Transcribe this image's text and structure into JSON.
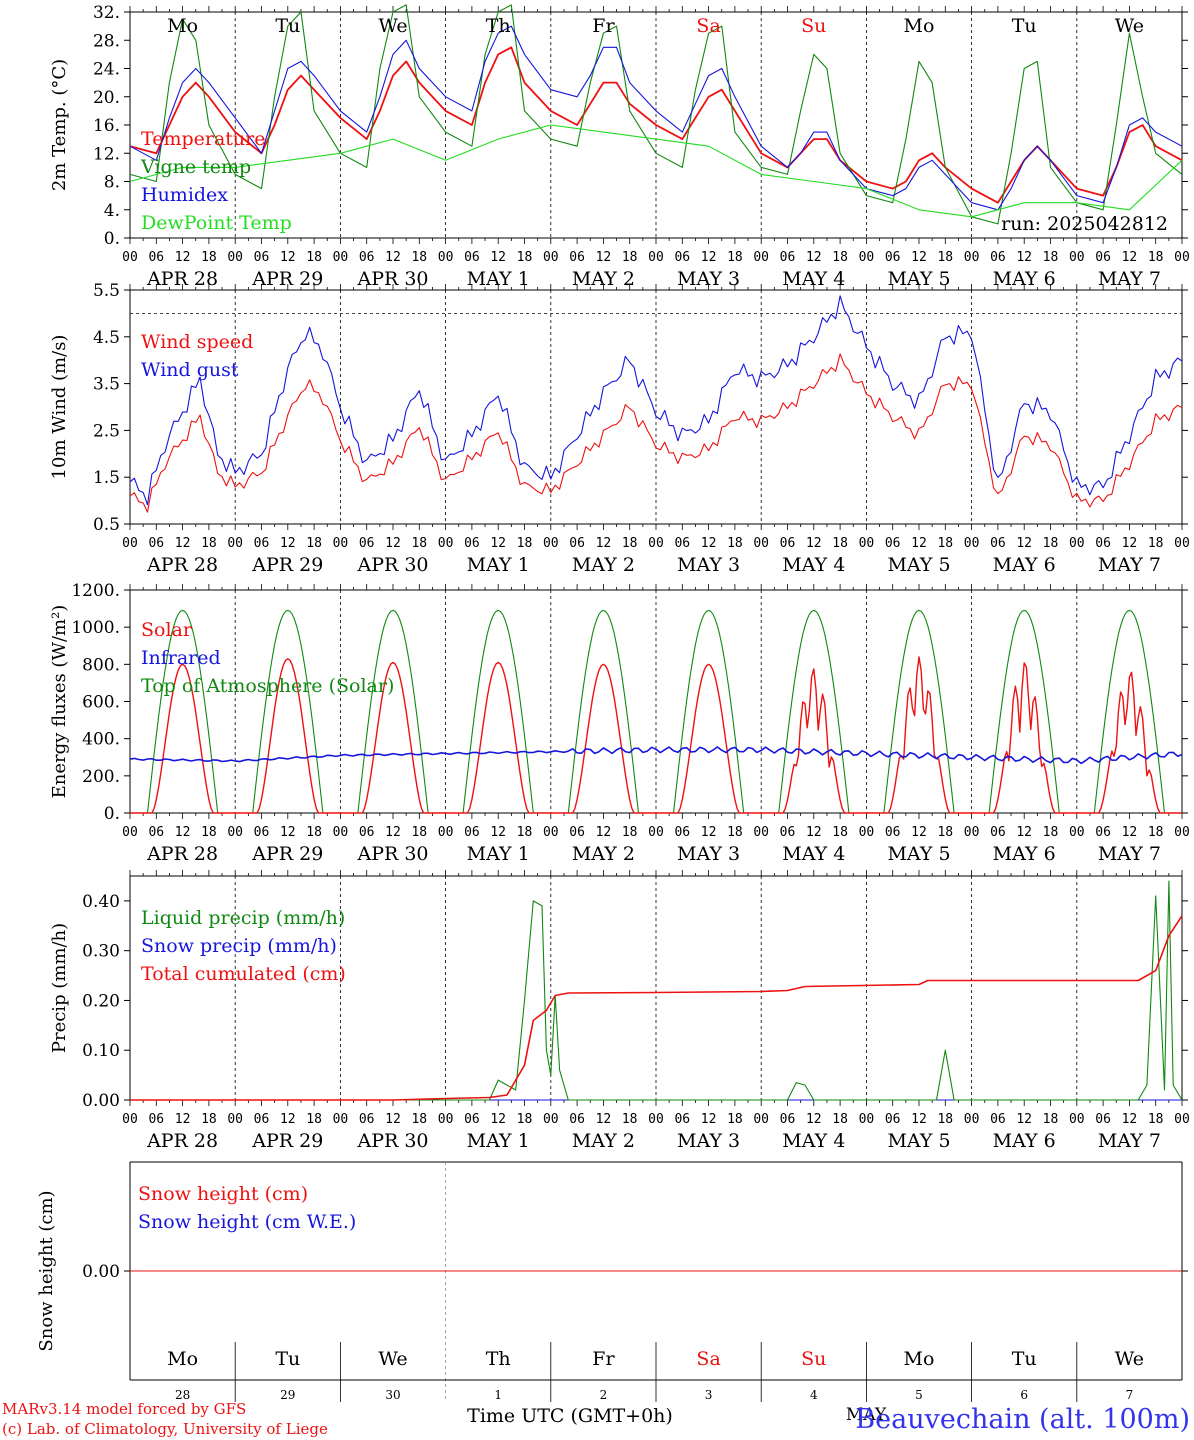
{
  "colors": {
    "red": "#ee1111",
    "green": "#118811",
    "blue": "#1515dd",
    "lightgreen": "#22dd22",
    "axis": "#000000",
    "title_blue": "#3333ee"
  },
  "days": [
    {
      "abbr": "Mo",
      "month": "APR",
      "day": "28",
      "weekend": false
    },
    {
      "abbr": "Tu",
      "month": "APR",
      "day": "29",
      "weekend": false
    },
    {
      "abbr": "We",
      "month": "APR",
      "day": "30",
      "weekend": false
    },
    {
      "abbr": "Th",
      "month": "MAY",
      "day": "1",
      "weekend": false
    },
    {
      "abbr": "Fr",
      "month": "MAY",
      "day": "2",
      "weekend": false
    },
    {
      "abbr": "Sa",
      "month": "MAY",
      "day": "3",
      "weekend": true
    },
    {
      "abbr": "Su",
      "month": "MAY",
      "day": "4",
      "weekend": true
    },
    {
      "abbr": "Mo",
      "month": "MAY",
      "day": "5",
      "weekend": false
    },
    {
      "abbr": "Tu",
      "month": "MAY",
      "day": "6",
      "weekend": false
    },
    {
      "abbr": "We",
      "month": "MAY",
      "day": "7",
      "weekend": false
    }
  ],
  "hour_ticks": [
    "00",
    "06",
    "12",
    "18"
  ],
  "final_hour_tick": "00",
  "footer": {
    "model_line": "MARv3.14 model forced by GFS",
    "copyright_line": "(c) Lab. of Climatology, University of Liege",
    "xlabel": "Time UTC (GMT+0h)",
    "month_label": "MAY",
    "station": "Beauvechain (alt. 100m)"
  },
  "chart_data": [
    {
      "type": "line",
      "ylabel": "2m Temp. (°C)",
      "ylim": [
        0,
        32
      ],
      "yticks": [
        "0.",
        "4.",
        "8.",
        "12.",
        "16.",
        "20.",
        "24.",
        "28.",
        "32."
      ],
      "annotation": "run: 2025042812",
      "x_unit": "hours since APR 28 00 UTC",
      "series": [
        {
          "name": "Temperature",
          "color": "red",
          "x": [
            0,
            6,
            9,
            12,
            15,
            18,
            24,
            30,
            33,
            36,
            39,
            42,
            48,
            54,
            57,
            60,
            63,
            66,
            72,
            78,
            81,
            84,
            87,
            90,
            96,
            102,
            105,
            108,
            111,
            114,
            120,
            126,
            129,
            132,
            135,
            138,
            144,
            150,
            153,
            156,
            159,
            162,
            168,
            174,
            177,
            180,
            183,
            186,
            192,
            198,
            201,
            204,
            207,
            210,
            216,
            222,
            225,
            228,
            231,
            234,
            240
          ],
          "y": [
            13,
            12,
            16,
            20,
            22,
            20,
            15,
            12,
            16,
            21,
            23,
            21,
            17,
            14,
            18,
            23,
            25,
            22,
            18,
            16,
            22,
            26,
            27,
            22,
            18,
            16,
            19,
            22,
            22,
            19,
            16,
            14,
            17,
            20,
            21,
            18,
            12,
            10,
            12,
            14,
            14,
            11,
            8,
            7,
            8,
            11,
            12,
            10,
            7,
            5,
            8,
            11,
            13,
            11,
            7,
            6,
            10,
            15,
            16,
            13,
            11
          ]
        },
        {
          "name": "Vigne temp",
          "color": "green",
          "x": [
            0,
            6,
            9,
            12,
            15,
            18,
            24,
            30,
            33,
            36,
            39,
            42,
            48,
            54,
            57,
            60,
            63,
            66,
            72,
            78,
            81,
            84,
            87,
            90,
            96,
            102,
            105,
            108,
            111,
            114,
            120,
            126,
            129,
            132,
            135,
            138,
            144,
            150,
            153,
            156,
            159,
            162,
            168,
            174,
            177,
            180,
            183,
            186,
            192,
            198,
            201,
            204,
            207,
            210,
            216,
            222,
            225,
            228,
            231,
            234,
            240
          ],
          "y": [
            9,
            8,
            22,
            31,
            28,
            16,
            9,
            7,
            20,
            30,
            32,
            18,
            12,
            10,
            24,
            32,
            33,
            20,
            15,
            13,
            26,
            32,
            33,
            18,
            14,
            13,
            22,
            29,
            30,
            18,
            12,
            10,
            21,
            29,
            30,
            15,
            10,
            9,
            18,
            26,
            24,
            12,
            6,
            5,
            14,
            25,
            22,
            10,
            3,
            2,
            12,
            24,
            25,
            10,
            5,
            4,
            16,
            29,
            20,
            12,
            9
          ]
        },
        {
          "name": "Humidex",
          "color": "blue",
          "x": [
            0,
            6,
            9,
            12,
            15,
            18,
            24,
            30,
            33,
            36,
            39,
            42,
            48,
            54,
            57,
            60,
            63,
            66,
            72,
            78,
            81,
            84,
            87,
            90,
            96,
            102,
            105,
            108,
            111,
            114,
            120,
            126,
            129,
            132,
            135,
            138,
            144,
            150,
            153,
            156,
            159,
            162,
            168,
            174,
            177,
            180,
            183,
            186,
            192,
            198,
            201,
            204,
            207,
            210,
            216,
            222,
            225,
            228,
            231,
            234,
            240
          ],
          "y": [
            13,
            11,
            17,
            22,
            24,
            22,
            17,
            12,
            18,
            24,
            25,
            23,
            18,
            15,
            20,
            26,
            28,
            24,
            20,
            18,
            25,
            29,
            30,
            26,
            21,
            20,
            23,
            27,
            27,
            22,
            18,
            15,
            19,
            23,
            24,
            20,
            13,
            10,
            12,
            15,
            15,
            11,
            7,
            6,
            7,
            10,
            11,
            9,
            5,
            4,
            7,
            11,
            13,
            11,
            6,
            5,
            10,
            16,
            17,
            15,
            13
          ]
        },
        {
          "name": "DewPoint Temp",
          "color": "lightgreen",
          "x": [
            0,
            12,
            24,
            36,
            48,
            60,
            72,
            84,
            96,
            108,
            120,
            132,
            144,
            156,
            168,
            180,
            192,
            204,
            216,
            228,
            240
          ],
          "y": [
            8,
            10,
            10,
            11,
            12,
            14,
            11,
            14,
            16,
            15,
            14,
            13,
            9,
            8,
            7,
            4,
            3,
            5,
            5,
            4,
            11
          ]
        }
      ]
    },
    {
      "type": "line",
      "ylabel": "10m Wind (m/s)",
      "ylim": [
        0.5,
        5.5
      ],
      "yticks": [
        "0.5",
        "1.5",
        "2.5",
        "3.5",
        "4.5",
        "5.5"
      ],
      "reference_line": 5.0,
      "x_unit": "hours since APR 28 00 UTC",
      "series": [
        {
          "name": "Wind speed",
          "color": "red",
          "x": [
            0,
            4,
            8,
            12,
            16,
            20,
            24,
            30,
            36,
            40,
            44,
            48,
            54,
            60,
            66,
            72,
            78,
            84,
            90,
            96,
            102,
            108,
            114,
            120,
            126,
            132,
            138,
            144,
            150,
            156,
            162,
            168,
            174,
            180,
            186,
            192,
            198,
            204,
            210,
            216,
            222,
            228,
            234,
            240
          ],
          "x_note": "",
          "y": [
            1.1,
            0.9,
            1.8,
            2.3,
            2.8,
            1.6,
            1.3,
            1.6,
            2.8,
            3.5,
            3.2,
            2.3,
            1.4,
            1.8,
            2.6,
            1.4,
            1.9,
            2.5,
            1.3,
            1.2,
            1.8,
            2.4,
            3.0,
            2.2,
            1.9,
            2.1,
            2.8,
            2.7,
            3.0,
            3.5,
            4.0,
            3.3,
            2.8,
            2.4,
            3.5,
            3.5,
            1.0,
            2.4,
            2.2,
            1.0,
            1.0,
            1.8,
            2.7,
            3.0
          ]
        },
        {
          "name": "Wind gust",
          "color": "blue",
          "x": [
            0,
            4,
            8,
            12,
            16,
            20,
            24,
            30,
            36,
            40,
            44,
            48,
            54,
            60,
            66,
            72,
            78,
            84,
            90,
            96,
            102,
            108,
            114,
            120,
            126,
            132,
            138,
            144,
            150,
            156,
            162,
            168,
            174,
            180,
            186,
            192,
            198,
            204,
            210,
            216,
            222,
            228,
            234,
            240
          ],
          "y": [
            1.4,
            1.1,
            2.2,
            2.9,
            3.6,
            2.0,
            1.6,
            2.0,
            3.8,
            4.6,
            4.2,
            3.0,
            1.8,
            2.3,
            3.4,
            1.8,
            2.4,
            3.3,
            1.7,
            1.5,
            2.4,
            3.3,
            4.0,
            2.9,
            2.4,
            2.7,
            3.8,
            3.6,
            3.9,
            4.5,
            5.2,
            4.3,
            3.5,
            3.1,
            4.5,
            4.6,
            1.3,
            3.1,
            2.9,
            1.3,
            1.3,
            2.4,
            3.6,
            4.0
          ]
        }
      ]
    },
    {
      "type": "line",
      "ylabel": "Energy fluxes (W/m²)",
      "ylim": [
        0,
        1200
      ],
      "yticks": [
        "0.",
        "200.",
        "400.",
        "600.",
        "800.",
        "1000.",
        "1200."
      ],
      "x_unit": "hours since APR 28 00 UTC",
      "solar_peaks": [
        800,
        830,
        810,
        810,
        800,
        800,
        780,
        840,
        820,
        770
      ],
      "toa_peak": 1090,
      "infrared": {
        "x": [
          0,
          24,
          48,
          72,
          96,
          120,
          144,
          168,
          192,
          216,
          240
        ],
        "y": [
          290,
          280,
          310,
          320,
          330,
          340,
          340,
          320,
          300,
          280,
          320
        ]
      },
      "series": [
        {
          "name": "Solar",
          "color": "red"
        },
        {
          "name": "Infrared",
          "color": "blue"
        },
        {
          "name": "Top of Atmosphere (Solar)",
          "color": "green"
        }
      ]
    },
    {
      "type": "line",
      "ylabel": "Precip (mm/h)",
      "ylim": [
        0,
        0.45
      ],
      "yticks": [
        "0.00",
        "0.10",
        "0.20",
        "0.30",
        "0.40"
      ],
      "x_unit": "hours since APR 28 00 UTC",
      "series": [
        {
          "name": "Liquid precip (mm/h)",
          "color": "green",
          "x": [
            0,
            82,
            84,
            88,
            90,
            92,
            94,
            95,
            96,
            97,
            98,
            100,
            102,
            150,
            152,
            154,
            156,
            180,
            184,
            186,
            188,
            190,
            230,
            232,
            234,
            236,
            237,
            238,
            240
          ],
          "y": [
            0,
            0,
            0.04,
            0.02,
            0.2,
            0.4,
            0.39,
            0.1,
            0.05,
            0.21,
            0.06,
            0.0,
            0,
            0,
            0.035,
            0.03,
            0,
            0,
            0.0,
            0.1,
            0.0,
            0,
            0,
            0.03,
            0.41,
            0.02,
            0.44,
            0.03,
            0
          ]
        },
        {
          "name": "Snow precip (mm/h)",
          "color": "blue",
          "x": [
            0,
            240
          ],
          "y": [
            0,
            0
          ]
        },
        {
          "name": "Total cumulated (cm)",
          "color": "red",
          "x": [
            0,
            60,
            72,
            82,
            86,
            90,
            92,
            95,
            97,
            100,
            120,
            144,
            150,
            154,
            180,
            182,
            230,
            234,
            237,
            240
          ],
          "y": [
            0,
            0,
            0.003,
            0.005,
            0.01,
            0.07,
            0.16,
            0.18,
            0.21,
            0.215,
            0.216,
            0.218,
            0.22,
            0.228,
            0.232,
            0.24,
            0.24,
            0.26,
            0.33,
            0.37
          ]
        }
      ]
    },
    {
      "type": "line",
      "ylabel": "Snow height (cm)",
      "ylim": [
        -1,
        1
      ],
      "yticks": [
        "0.00"
      ],
      "x_unit": "hours since APR 28 00 UTC",
      "series": [
        {
          "name": "Snow height (cm)",
          "color": "red",
          "x": [
            0,
            240
          ],
          "y": [
            0,
            0
          ]
        },
        {
          "name": "Snow height (cm W.E.)",
          "color": "blue",
          "x": [
            0,
            240
          ],
          "y": [
            0,
            0
          ]
        }
      ]
    }
  ]
}
